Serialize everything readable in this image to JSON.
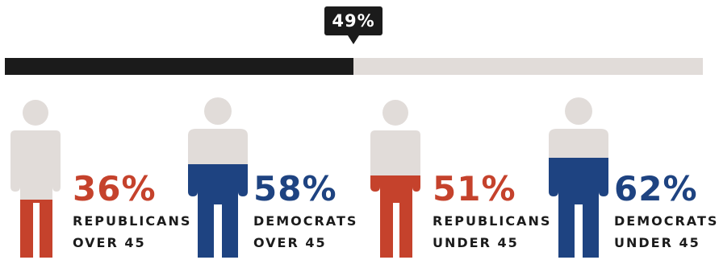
{
  "overall": {
    "label": "49%",
    "value": 49,
    "fill_color": "#1b1b1b",
    "track_color": "#e1dcd9"
  },
  "chart_data": {
    "type": "bar",
    "categories": [
      "REPUBLICANS OVER 45",
      "DEMOCRATS OVER 45",
      "REPUBLICANS UNDER 45",
      "DEMOCRATS UNDER 45"
    ],
    "values": [
      36,
      58,
      51,
      62
    ],
    "overall_value": 49
  },
  "groups": [
    {
      "pct_label": "36%",
      "value": 36,
      "line1": "REPUBLICANS",
      "line2": "OVER 45",
      "color": "#c5422c",
      "build": "slim"
    },
    {
      "pct_label": "58%",
      "value": 58,
      "line1": "DEMOCRATS",
      "line2": "OVER 45",
      "color": "#1e4381",
      "build": "wide"
    },
    {
      "pct_label": "51%",
      "value": 51,
      "line1": "REPUBLICANS",
      "line2": "UNDER 45",
      "color": "#c5422c",
      "build": "slim"
    },
    {
      "pct_label": "62%",
      "value": 62,
      "line1": "DEMOCRATS",
      "line2": "UNDER 45",
      "color": "#1e4381",
      "build": "wide"
    }
  ],
  "figure_base_color": "#e1dcd9"
}
